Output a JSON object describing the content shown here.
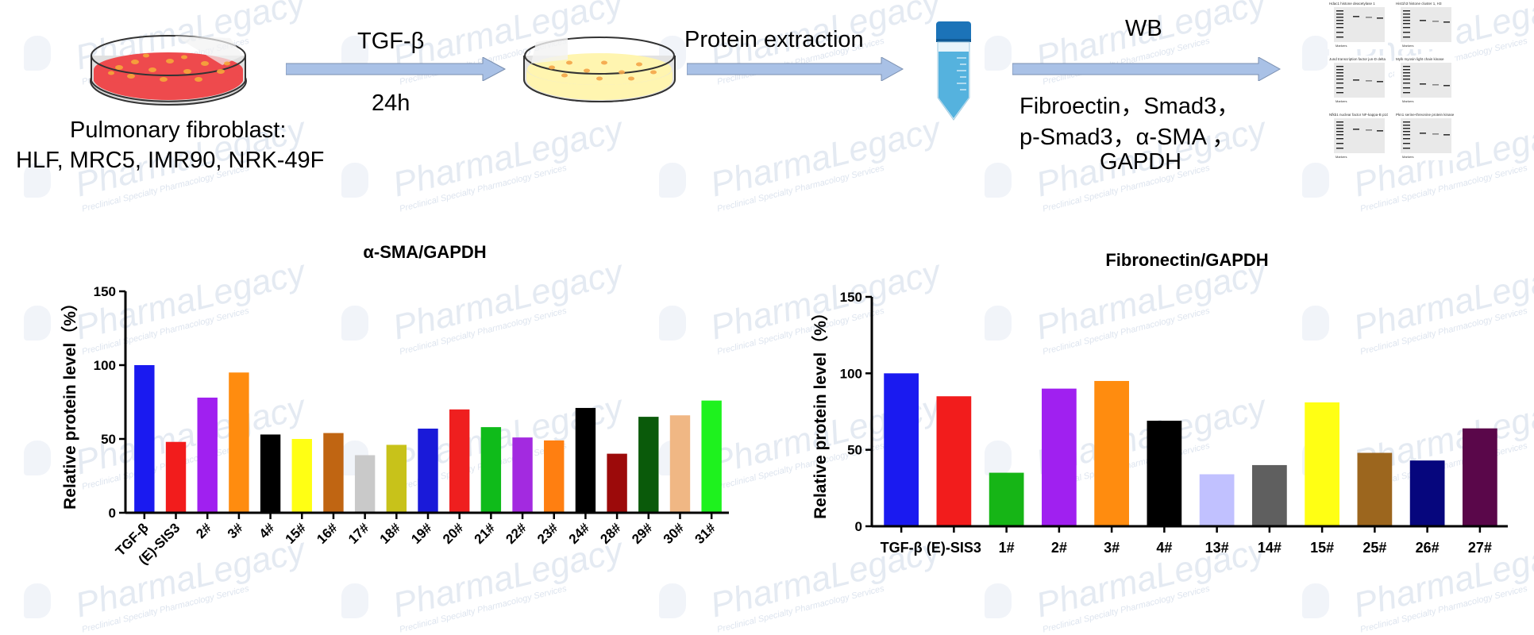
{
  "watermark": {
    "brand": "PharmaLegacy",
    "tagline": "Preclinical Specialty Pharmacology Services"
  },
  "workflow": {
    "fibroblast_label": "Pulmonary fibroblast:",
    "cell_lines": "HLF, MRC5, IMR90, NRK-49F",
    "treatment": "TGF-β",
    "duration": "24h",
    "extraction": "Protein extraction",
    "wb": "WB",
    "targets_line1": "Fibroectin，Smad3，",
    "targets_line2": "p-Smad3，α-SMA ，",
    "targets_line3": "GAPDH",
    "blot_titles": [
      "Hdac1 histone deacetylase 1",
      "Hist1h3 histone cluster 1, H3",
      "Jund transcription factor jun-D delta",
      "Mylk myosin light chain kinase",
      "Nfkb1 nuclear factor NF-kappa-B p105",
      "Pkn1 serine-threonine protein kinase"
    ],
    "blot_lane_label": "Markers",
    "colors": {
      "arrow": "#a9c1e6",
      "dish1_medium": "#ee4a4d",
      "dish2_medium": "#fff5b0",
      "tube": "#55b2de",
      "cap": "#1c73b8"
    }
  },
  "chart_data": [
    {
      "type": "bar",
      "title": "α-SMA/GAPDH",
      "ylabel": "Relative protein level（%）",
      "xlabel": "",
      "ylim": [
        0,
        150
      ],
      "yticks": [
        0,
        50,
        100,
        150
      ],
      "categories": [
        "TGF-β",
        "(E)-SIS3",
        "2#",
        "3#",
        "4#",
        "15#",
        "16#",
        "17#",
        "18#",
        "19#",
        "20#",
        "21#",
        "22#",
        "23#",
        "24#",
        "28#",
        "29#",
        "30#",
        "31#"
      ],
      "values": [
        100,
        48,
        78,
        95,
        53,
        50,
        54,
        39,
        46,
        57,
        70,
        58,
        51,
        49,
        71,
        40,
        65,
        66,
        76
      ],
      "colors": [
        "#1a1af0",
        "#f21c1c",
        "#a020f0",
        "#ff8c0f",
        "#000000",
        "#ffff14",
        "#c06512",
        "#c9c9c9",
        "#c8c21a",
        "#1a1ad9",
        "#ef1f1f",
        "#0fbb1a",
        "#a32ae0",
        "#ff7f11",
        "#000000",
        "#9c0a0a",
        "#0a5a0a",
        "#f0b784",
        "#1ef21e"
      ],
      "grid": false,
      "legend": "none"
    },
    {
      "type": "bar",
      "title": "Fibronectin/GAPDH",
      "ylabel": "Relative protein level（%）",
      "xlabel": "",
      "ylim": [
        0,
        150
      ],
      "yticks": [
        0,
        50,
        100,
        150
      ],
      "categories": [
        "TGF-β",
        "(E)-SIS3",
        "1#",
        "2#",
        "3#",
        "4#",
        "13#",
        "14#",
        "15#",
        "25#",
        "26#",
        "27#"
      ],
      "values": [
        100,
        85,
        35,
        90,
        95,
        69,
        34,
        40,
        81,
        48,
        43,
        64
      ],
      "colors": [
        "#1a1af0",
        "#f21c1c",
        "#16b516",
        "#a020f0",
        "#ff8c0f",
        "#000000",
        "#c1c1ff",
        "#5f5f5f",
        "#ffff14",
        "#9c661e",
        "#06067d",
        "#5a074a"
      ],
      "grid": false,
      "legend": "none"
    }
  ]
}
